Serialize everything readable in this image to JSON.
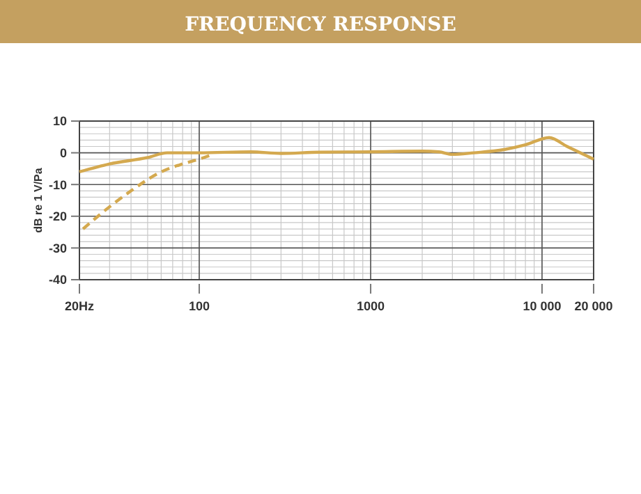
{
  "chart_data": {
    "type": "line",
    "title": "FREQUENCY RESPONSE",
    "ylabel": "dB re 1 V/Pa",
    "log": "x",
    "grid": true,
    "marker": "none",
    "xlim": [
      20,
      20000
    ],
    "xticks": [
      {
        "value": 20,
        "label": "20Hz"
      },
      100,
      1000,
      {
        "value": 10000,
        "label": "10 000"
      },
      {
        "value": 20000,
        "label": "20 000"
      }
    ],
    "ylim": [
      -40,
      10
    ],
    "yticks": [
      -40,
      -30,
      -20,
      -10,
      0,
      10
    ],
    "series": [
      {
        "color": "#d4a94f",
        "line_style": "solid",
        "x": [
          20,
          30,
          50,
          65,
          100,
          200,
          300,
          500,
          1000,
          2000,
          2500,
          3000,
          4000,
          6000,
          8000,
          11000,
          14000,
          20000
        ],
        "values": [
          -6,
          -3.5,
          -1.5,
          0,
          0,
          0.3,
          -0.2,
          0.2,
          0.3,
          0.5,
          0.3,
          -0.5,
          0,
          1,
          2.5,
          4.8,
          2,
          -2
        ]
      },
      {
        "color": "#d4a94f",
        "line_style": "dashed",
        "x": [
          21,
          30,
          40,
          60,
          80,
          100,
          120
        ],
        "values": [
          -24,
          -17,
          -12,
          -6,
          -3.5,
          -2,
          -0.5
        ]
      }
    ]
  }
}
